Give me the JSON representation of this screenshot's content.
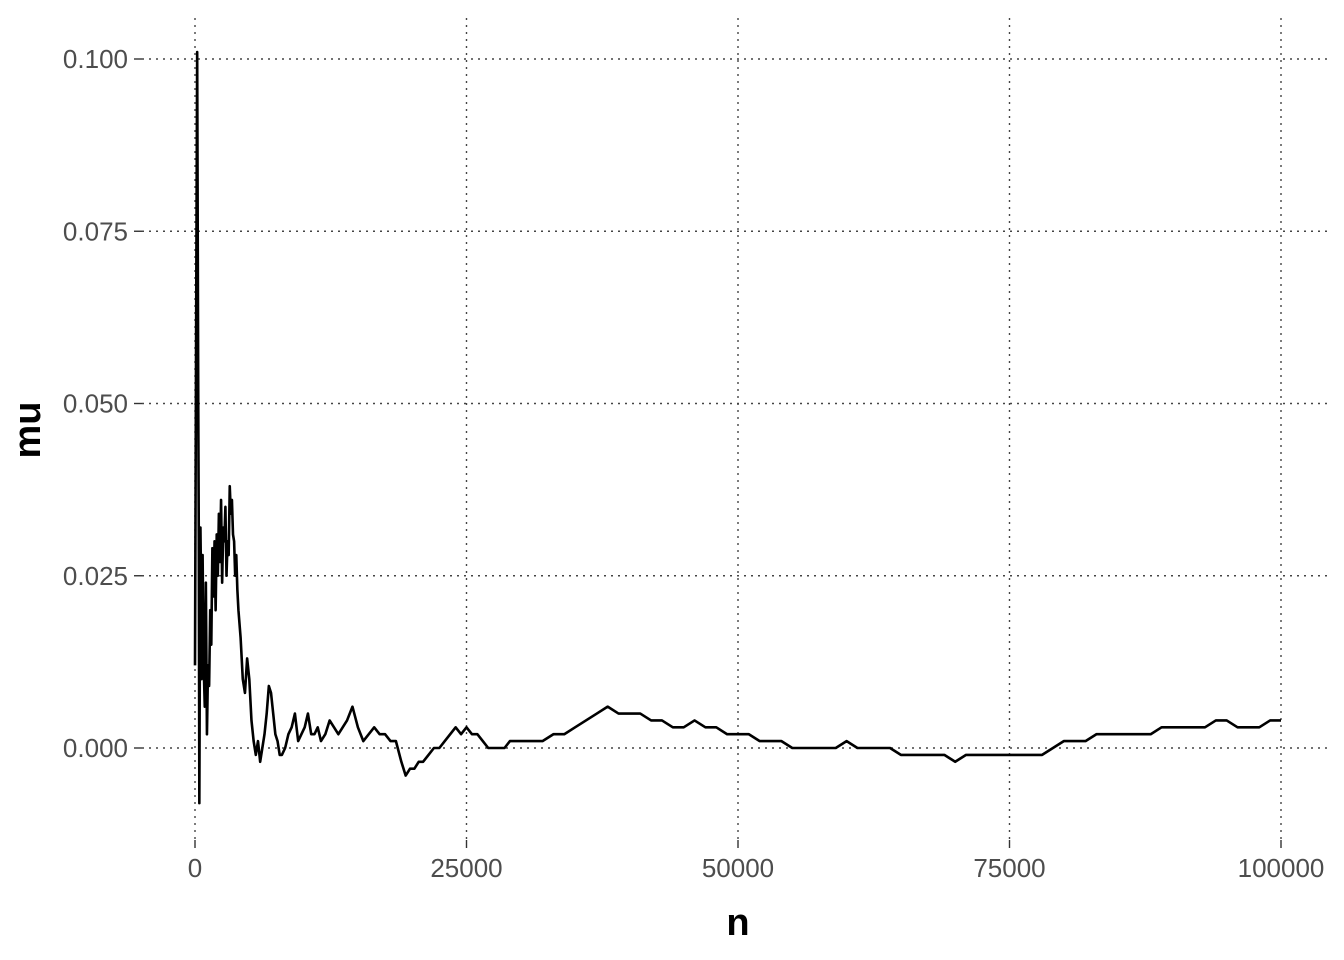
{
  "chart_data": {
    "type": "line",
    "title": "",
    "xlabel": "n",
    "ylabel": "mu",
    "xlim": [
      0,
      100000
    ],
    "ylim": [
      -0.0085,
      0.1015
    ],
    "x_ticks": [
      0,
      25000,
      50000,
      75000,
      100000
    ],
    "x_tick_labels": [
      "0",
      "25000",
      "50000",
      "75000",
      "100000"
    ],
    "y_ticks": [
      0,
      0.025,
      0.05,
      0.075,
      0.1
    ],
    "y_tick_labels": [
      "0.000",
      "0.025",
      "0.050",
      "0.075",
      "0.100"
    ],
    "grid": true,
    "legend": "none",
    "line_color": "#000000",
    "series": [
      {
        "x": [
          0,
          100,
          200,
          300,
          350,
          400,
          450,
          500,
          550,
          600,
          700,
          800,
          900,
          1000,
          1100,
          1200,
          1300,
          1400,
          1500,
          1600,
          1700,
          1800,
          1900,
          2000,
          2100,
          2200,
          2300,
          2400,
          2500,
          2600,
          2700,
          2800,
          2900,
          3000,
          3100,
          3200,
          3300,
          3400,
          3500,
          3600,
          3700,
          3800,
          3900,
          4000,
          4200,
          4400,
          4600,
          4800,
          5000,
          5200,
          5400,
          5600,
          5800,
          6000,
          6200,
          6400,
          6600,
          6800,
          7000,
          7200,
          7400,
          7600,
          7800,
          8000,
          8300,
          8600,
          8900,
          9200,
          9500,
          9800,
          10100,
          10400,
          10700,
          11000,
          11300,
          11600,
          12000,
          12400,
          12800,
          13200,
          13600,
          14000,
          14500,
          15000,
          15500,
          16000,
          16500,
          17000,
          17500,
          18000,
          18500,
          19000,
          19400,
          19800,
          20200,
          20600,
          21000,
          21500,
          22000,
          22500,
          23000,
          23500,
          24000,
          24500,
          25000,
          25500,
          26000,
          26500,
          27000,
          27500,
          28000,
          28500,
          29000,
          30000,
          31000,
          32000,
          33000,
          34000,
          35000,
          36000,
          37000,
          38000,
          39000,
          40000,
          41000,
          42000,
          43000,
          44000,
          45000,
          46000,
          47000,
          48000,
          49000,
          50000,
          51000,
          52000,
          53000,
          54000,
          55000,
          56000,
          57000,
          58000,
          59000,
          60000,
          61000,
          62000,
          63000,
          64000,
          65000,
          66000,
          67000,
          68000,
          69000,
          70000,
          71000,
          72000,
          73000,
          74000,
          75000,
          76000,
          77000,
          78000,
          79000,
          80000,
          81000,
          82000,
          83000,
          84000,
          85000,
          86000,
          87000,
          88000,
          89000,
          90000,
          91000,
          92000,
          93000,
          94000,
          95000,
          96000,
          97000,
          98000,
          99000,
          100000
        ],
        "y": [
          0.012,
          0.06,
          0.101,
          0.05,
          0.03,
          -0.008,
          0.015,
          0.032,
          0.025,
          0.01,
          0.028,
          0.012,
          0.006,
          0.024,
          0.002,
          0.012,
          0.009,
          0.02,
          0.015,
          0.029,
          0.022,
          0.03,
          0.02,
          0.031,
          0.025,
          0.034,
          0.027,
          0.036,
          0.024,
          0.032,
          0.03,
          0.035,
          0.025,
          0.03,
          0.028,
          0.038,
          0.034,
          0.036,
          0.031,
          0.03,
          0.025,
          0.028,
          0.023,
          0.02,
          0.016,
          0.01,
          0.008,
          0.013,
          0.01,
          0.004,
          0.001,
          -0.001,
          0.001,
          -0.002,
          0.0,
          0.002,
          0.005,
          0.009,
          0.008,
          0.005,
          0.002,
          0.001,
          -0.001,
          -0.001,
          0.0,
          0.002,
          0.003,
          0.005,
          0.001,
          0.002,
          0.003,
          0.005,
          0.002,
          0.002,
          0.003,
          0.001,
          0.002,
          0.004,
          0.003,
          0.002,
          0.003,
          0.004,
          0.006,
          0.003,
          0.001,
          0.002,
          0.003,
          0.002,
          0.002,
          0.001,
          0.001,
          -0.002,
          -0.004,
          -0.003,
          -0.003,
          -0.002,
          -0.002,
          -0.001,
          0.0,
          0.0,
          0.001,
          0.002,
          0.003,
          0.002,
          0.003,
          0.002,
          0.002,
          0.001,
          0.0,
          0.0,
          0.0,
          0.0,
          0.001,
          0.001,
          0.001,
          0.001,
          0.002,
          0.002,
          0.003,
          0.004,
          0.005,
          0.006,
          0.005,
          0.005,
          0.005,
          0.004,
          0.004,
          0.003,
          0.003,
          0.004,
          0.003,
          0.003,
          0.002,
          0.002,
          0.002,
          0.001,
          0.001,
          0.001,
          0.0,
          0.0,
          0.0,
          0.0,
          0.0,
          0.001,
          0.0,
          0.0,
          0.0,
          0.0,
          -0.001,
          -0.001,
          -0.001,
          -0.001,
          -0.001,
          -0.002,
          -0.001,
          -0.001,
          -0.001,
          -0.001,
          -0.001,
          -0.001,
          -0.001,
          -0.001,
          0.0,
          0.001,
          0.001,
          0.001,
          0.002,
          0.002,
          0.002,
          0.002,
          0.002,
          0.002,
          0.003,
          0.003,
          0.003,
          0.003,
          0.003,
          0.004,
          0.004,
          0.003,
          0.003,
          0.003,
          0.004,
          0.004
        ]
      }
    ]
  }
}
